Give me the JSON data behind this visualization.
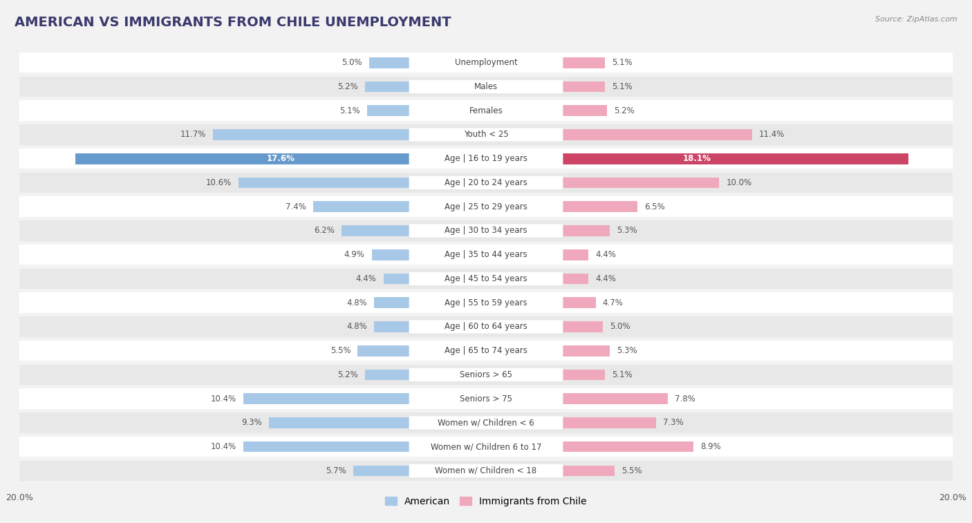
{
  "title": "AMERICAN VS IMMIGRANTS FROM CHILE UNEMPLOYMENT",
  "source": "Source: ZipAtlas.com",
  "categories": [
    "Unemployment",
    "Males",
    "Females",
    "Youth < 25",
    "Age | 16 to 19 years",
    "Age | 20 to 24 years",
    "Age | 25 to 29 years",
    "Age | 30 to 34 years",
    "Age | 35 to 44 years",
    "Age | 45 to 54 years",
    "Age | 55 to 59 years",
    "Age | 60 to 64 years",
    "Age | 65 to 74 years",
    "Seniors > 65",
    "Seniors > 75",
    "Women w/ Children < 6",
    "Women w/ Children 6 to 17",
    "Women w/ Children < 18"
  ],
  "american": [
    5.0,
    5.2,
    5.1,
    11.7,
    17.6,
    10.6,
    7.4,
    6.2,
    4.9,
    4.4,
    4.8,
    4.8,
    5.5,
    5.2,
    10.4,
    9.3,
    10.4,
    5.7
  ],
  "immigrants": [
    5.1,
    5.1,
    5.2,
    11.4,
    18.1,
    10.0,
    6.5,
    5.3,
    4.4,
    4.4,
    4.7,
    5.0,
    5.3,
    5.1,
    7.8,
    7.3,
    8.9,
    5.5
  ],
  "american_color": "#a8c8e8",
  "immigrant_color": "#f0a8bc",
  "american_highlight": "#6699cc",
  "immigrant_highlight": "#cc4466",
  "xlim": 20.0,
  "bg_color": "#f2f2f2",
  "row_color_even": "#ffffff",
  "row_color_odd": "#e8e8e8",
  "label_fontsize": 8.5,
  "title_fontsize": 14,
  "value_fontsize": 8.5,
  "legend_fontsize": 10
}
